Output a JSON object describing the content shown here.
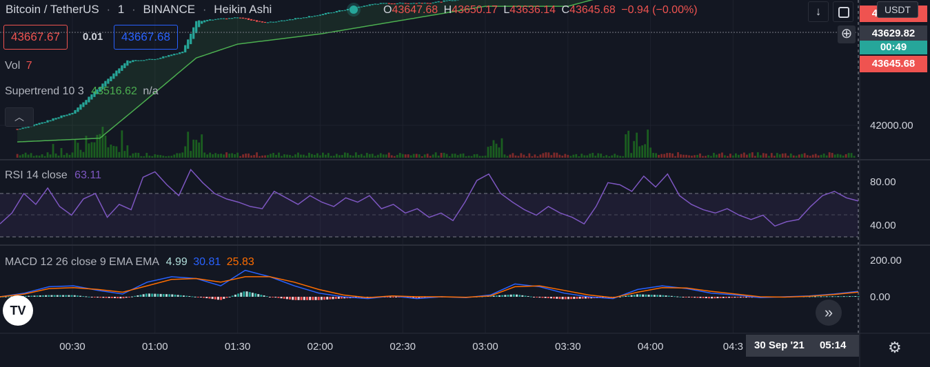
{
  "header": {
    "symbol": "Bitcoin / TetherUS",
    "interval": "1",
    "exchange": "BINANCE",
    "style": "Heikin Ashi",
    "ohlc": {
      "o_label": "O",
      "o": "43647.68",
      "h_label": "H",
      "h": "43650.17",
      "l_label": "L",
      "l": "43636.14",
      "c_label": "C",
      "c": "43645.68",
      "change": "−0.94 (−0.00%)"
    },
    "sell_price": "43667.67",
    "spread": "0.01",
    "buy_price": "43667.68"
  },
  "colors": {
    "bg": "#131722",
    "up": "#26a69a",
    "down": "#ef5350",
    "supertrend": "#4caf50",
    "rsi": "#7e57c2",
    "macd": "#2962ff",
    "signal": "#ff6d00"
  },
  "indicators": {
    "vol_label": "Vol",
    "vol_value": "7",
    "supertrend_label": "Supertrend 10 3",
    "supertrend_value": "43516.62",
    "supertrend_na": "n/a",
    "rsi_label": "RSI 14 close",
    "rsi_value": "63.11",
    "macd_label": "MACD 12 26 close 9 EMA EMA",
    "macd_hist": "4.99",
    "macd_value": "30.81",
    "macd_signal": "25.83"
  },
  "price_axis": {
    "currency": "USDT",
    "ask_tag": "43667.68",
    "crosshair_price": "43629.82",
    "countdown": "00:49",
    "last_price": "43645.68",
    "level": "42000.00"
  },
  "rsi_axis": {
    "upper": "80.00",
    "lower": "40.00"
  },
  "macd_axis": {
    "upper": "200.00",
    "zero": "0.00"
  },
  "time_axis": {
    "ticks": [
      "00:30",
      "01:00",
      "01:30",
      "02:00",
      "02:30",
      "03:00",
      "03:30",
      "04:00",
      "04:3"
    ],
    "crosshair_date": "30 Sep '21",
    "crosshair_time": "05:14"
  },
  "chart_data": [
    {
      "type": "candlestick",
      "series_name": "Bitcoin / TetherUS Heikin Ashi",
      "y_tick": 42000,
      "close_path": [
        {
          "t": "00:10",
          "v": 41960
        },
        {
          "t": "00:20",
          "v": 42040
        },
        {
          "t": "00:30",
          "v": 42140
        },
        {
          "t": "00:40",
          "v": 42420
        },
        {
          "t": "00:50",
          "v": 42700
        },
        {
          "t": "01:00",
          "v": 42720
        },
        {
          "t": "01:10",
          "v": 42800
        },
        {
          "t": "01:15",
          "v": 43130
        },
        {
          "t": "01:30",
          "v": 43170
        },
        {
          "t": "01:40",
          "v": 43110
        },
        {
          "t": "02:00",
          "v": 43200
        },
        {
          "t": "02:20",
          "v": 43320
        },
        {
          "t": "02:40",
          "v": 43330
        },
        {
          "t": "03:00",
          "v": 43400
        },
        {
          "t": "03:05",
          "v": 43570
        },
        {
          "t": "03:30",
          "v": 43430
        },
        {
          "t": "03:50",
          "v": 43560
        },
        {
          "t": "04:00",
          "v": 43730
        },
        {
          "t": "04:10",
          "v": 43650
        },
        {
          "t": "04:30",
          "v": 43640
        },
        {
          "t": "05:00",
          "v": 43630
        },
        {
          "t": "05:14",
          "v": 43646
        }
      ],
      "supertrend": [
        {
          "t": "00:10",
          "v": 41820
        },
        {
          "t": "00:40",
          "v": 41860
        },
        {
          "t": "00:55",
          "v": 42230
        },
        {
          "t": "01:15",
          "v": 42730
        },
        {
          "t": "01:30",
          "v": 42880
        },
        {
          "t": "02:00",
          "v": 42990
        },
        {
          "t": "02:30",
          "v": 43140
        },
        {
          "t": "03:00",
          "v": 43290
        },
        {
          "t": "03:30",
          "v": 43290
        },
        {
          "t": "04:00",
          "v": 43530
        },
        {
          "t": "04:30",
          "v": 43530
        },
        {
          "t": "05:14",
          "v": 43516.62
        }
      ],
      "volume_last": 7
    },
    {
      "type": "line",
      "name": "RSI 14 close",
      "ylim": [
        30,
        100
      ],
      "bands": [
        70,
        50,
        30
      ],
      "values": [
        42,
        52,
        70,
        60,
        75,
        58,
        50,
        65,
        70,
        48,
        60,
        55,
        85,
        90,
        78,
        68,
        92,
        80,
        70,
        65,
        62,
        58,
        56,
        72,
        66,
        60,
        68,
        62,
        58,
        66,
        62,
        68,
        56,
        60,
        52,
        56,
        48,
        52,
        45,
        62,
        82,
        88,
        70,
        62,
        55,
        50,
        58,
        52,
        48,
        42,
        58,
        80,
        78,
        72,
        86,
        76,
        88,
        68,
        60,
        55,
        52,
        56,
        50,
        46,
        50,
        40,
        44,
        46,
        58,
        68,
        72,
        66,
        63.11
      ],
      "last": 63.11
    },
    {
      "type": "line",
      "name": "MACD 12 26 close 9 EMA EMA",
      "ylim": [
        -100,
        250
      ],
      "macd": [
        0,
        20,
        55,
        60,
        35,
        15,
        80,
        110,
        100,
        60,
        145,
        110,
        60,
        20,
        0,
        -10,
        5,
        -10,
        0,
        -5,
        10,
        70,
        55,
        20,
        0,
        -10,
        40,
        60,
        45,
        20,
        10,
        -5,
        0,
        5,
        15,
        30
      ],
      "signal": [
        0,
        15,
        45,
        50,
        40,
        25,
        60,
        95,
        100,
        80,
        110,
        110,
        80,
        40,
        10,
        -5,
        5,
        0,
        0,
        -3,
        5,
        55,
        60,
        35,
        10,
        -5,
        25,
        50,
        48,
        30,
        15,
        0,
        -2,
        3,
        12,
        25.83
      ],
      "histogram_last": 4.99,
      "macd_last": 30.81,
      "signal_last": 25.83
    }
  ]
}
